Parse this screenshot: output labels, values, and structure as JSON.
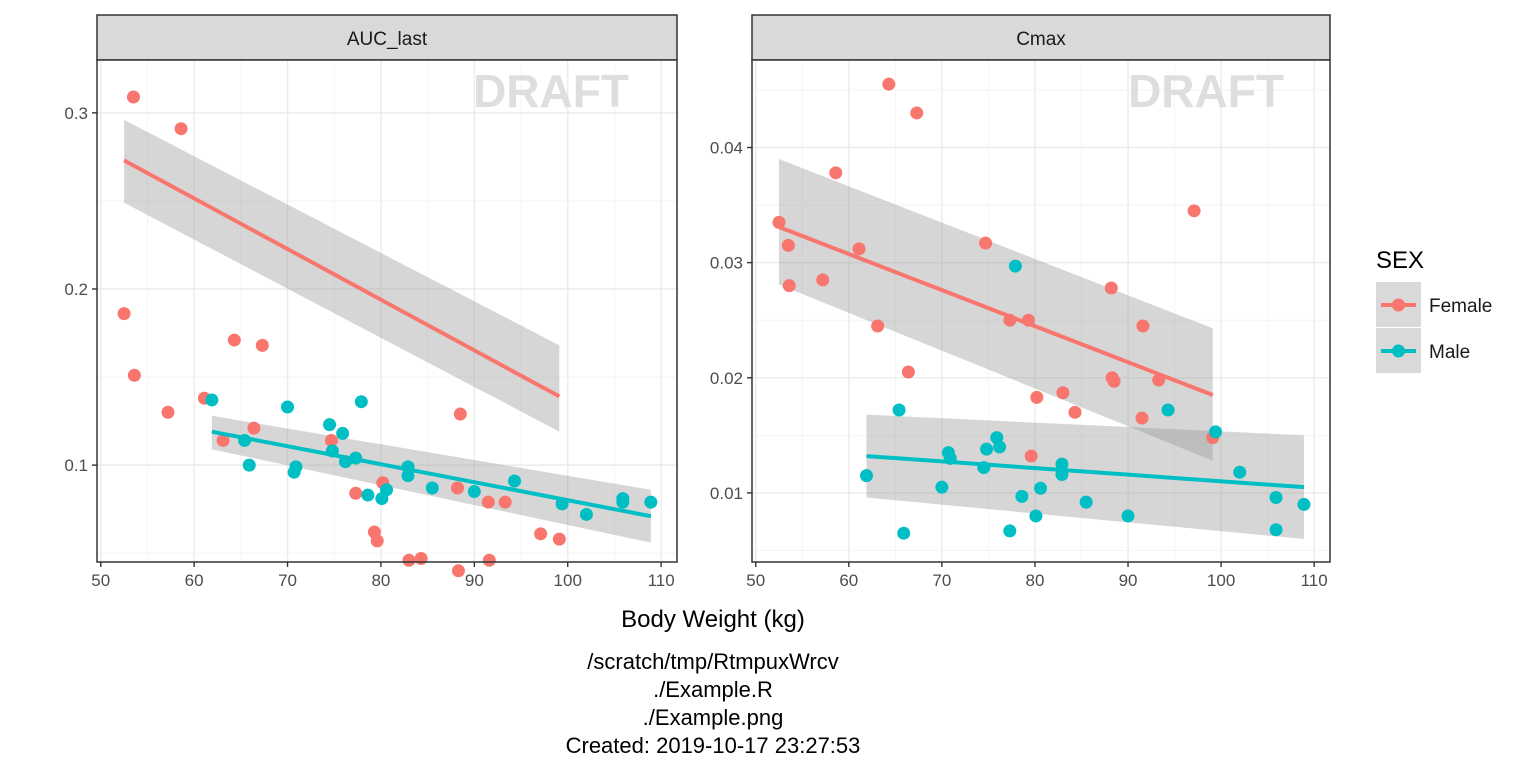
{
  "chart_data": {
    "type": "scatter",
    "x_label": "Body Weight (kg)",
    "legend": {
      "title": "SEX",
      "position": "right",
      "entries": [
        {
          "name": "Female",
          "color": "#F8766D"
        },
        {
          "name": "Male",
          "color": "#00BFC4"
        }
      ]
    },
    "watermark": "DRAFT",
    "x_range": [
      49.6,
      111.7
    ],
    "x_ticks": [
      "50",
      "60",
      "70",
      "80",
      "90",
      "100",
      "110"
    ],
    "x_tick_values": [
      50,
      60,
      70,
      80,
      90,
      100,
      110
    ],
    "panels": [
      {
        "title": "AUC_last",
        "y_range": [
          0.045,
          0.33
        ],
        "y_ticks": [
          "0.1",
          "0.2",
          "0.3"
        ],
        "y_tick_values": [
          0.1,
          0.2,
          0.3
        ],
        "series": [
          {
            "name": "Female",
            "points": [
              [
                52.5,
                0.186
              ],
              [
                53.5,
                0.309
              ],
              [
                53.6,
                0.151
              ],
              [
                57.2,
                0.13
              ],
              [
                58.6,
                0.291
              ],
              [
                61.1,
                0.138
              ],
              [
                63.1,
                0.114
              ],
              [
                64.3,
                0.171
              ],
              [
                66.4,
                0.121
              ],
              [
                67.3,
                0.168
              ],
              [
                74.7,
                0.114
              ],
              [
                77.3,
                0.084
              ],
              [
                79.3,
                0.062
              ],
              [
                79.6,
                0.057
              ],
              [
                80.2,
                0.09
              ],
              [
                83.0,
                0.046
              ],
              [
                84.3,
                0.047
              ],
              [
                88.2,
                0.087
              ],
              [
                88.3,
                0.04
              ],
              [
                88.5,
                0.129
              ],
              [
                91.5,
                0.079
              ],
              [
                91.6,
                0.046
              ],
              [
                93.3,
                0.079
              ],
              [
                97.1,
                0.061
              ],
              [
                99.1,
                0.058
              ]
            ],
            "fit": {
              "x": [
                52.5,
                99.1
              ],
              "y": [
                0.273,
                0.139
              ],
              "ci_low": [
                0.249,
                0.119
              ],
              "ci_high": [
                0.296,
                0.168
              ]
            }
          },
          {
            "name": "Male",
            "points": [
              [
                61.9,
                0.137
              ],
              [
                65.4,
                0.114
              ],
              [
                65.9,
                0.1
              ],
              [
                70.0,
                0.133
              ],
              [
                70.7,
                0.096
              ],
              [
                70.9,
                0.099
              ],
              [
                74.5,
                0.123
              ],
              [
                74.8,
                0.108
              ],
              [
                75.9,
                0.118
              ],
              [
                76.2,
                0.102
              ],
              [
                77.3,
                0.104
              ],
              [
                77.9,
                0.136
              ],
              [
                78.6,
                0.083
              ],
              [
                80.1,
                0.081
              ],
              [
                80.6,
                0.086
              ],
              [
                82.9,
                0.094
              ],
              [
                82.9,
                0.099
              ],
              [
                85.5,
                0.087
              ],
              [
                90.0,
                0.085
              ],
              [
                94.3,
                0.091
              ],
              [
                99.4,
                0.078
              ],
              [
                102.0,
                0.072
              ],
              [
                105.9,
                0.079
              ],
              [
                105.9,
                0.081
              ],
              [
                108.9,
                0.079
              ]
            ],
            "fit": {
              "x": [
                61.9,
                108.9
              ],
              "y": [
                0.119,
                0.071
              ],
              "ci_low": [
                0.109,
                0.056
              ],
              "ci_high": [
                0.128,
                0.086
              ]
            }
          }
        ]
      },
      {
        "title": "Cmax",
        "y_range": [
          0.004,
          0.0476
        ],
        "y_ticks": [
          "0.01",
          "0.02",
          "0.03",
          "0.04"
        ],
        "y_tick_values": [
          0.01,
          0.02,
          0.03,
          0.04
        ],
        "series": [
          {
            "name": "Female",
            "points": [
              [
                52.5,
                0.0335
              ],
              [
                53.5,
                0.0315
              ],
              [
                53.6,
                0.028
              ],
              [
                57.2,
                0.0285
              ],
              [
                58.6,
                0.0378
              ],
              [
                61.1,
                0.0312
              ],
              [
                63.1,
                0.0245
              ],
              [
                64.3,
                0.0455
              ],
              [
                66.4,
                0.0205
              ],
              [
                67.3,
                0.043
              ],
              [
                74.7,
                0.0317
              ],
              [
                77.3,
                0.025
              ],
              [
                79.3,
                0.025
              ],
              [
                79.6,
                0.0132
              ],
              [
                80.2,
                0.0183
              ],
              [
                83.0,
                0.0187
              ],
              [
                84.3,
                0.017
              ],
              [
                88.2,
                0.0278
              ],
              [
                88.3,
                0.02
              ],
              [
                88.5,
                0.0197
              ],
              [
                91.5,
                0.0165
              ],
              [
                91.6,
                0.0245
              ],
              [
                93.3,
                0.0198
              ],
              [
                97.1,
                0.0345
              ],
              [
                99.1,
                0.0148
              ]
            ],
            "fit": {
              "x": [
                52.5,
                99.1
              ],
              "y": [
                0.0331,
                0.0185
              ],
              "ci_low": [
                0.0281,
                0.0128
              ],
              "ci_high": [
                0.039,
                0.0243
              ]
            }
          },
          {
            "name": "Male",
            "points": [
              [
                61.9,
                0.0115
              ],
              [
                65.4,
                0.0172
              ],
              [
                65.9,
                0.0065
              ],
              [
                70.0,
                0.0105
              ],
              [
                70.7,
                0.0135
              ],
              [
                70.9,
                0.013
              ],
              [
                74.5,
                0.0122
              ],
              [
                74.8,
                0.0138
              ],
              [
                75.9,
                0.0148
              ],
              [
                76.2,
                0.014
              ],
              [
                77.3,
                0.0067
              ],
              [
                77.9,
                0.0297
              ],
              [
                78.6,
                0.0097
              ],
              [
                80.1,
                0.008
              ],
              [
                80.6,
                0.0104
              ],
              [
                82.9,
                0.0116
              ],
              [
                82.9,
                0.0125
              ],
              [
                85.5,
                0.0092
              ],
              [
                90.0,
                0.008
              ],
              [
                94.3,
                0.0172
              ],
              [
                99.4,
                0.0153
              ],
              [
                102.0,
                0.0118
              ],
              [
                105.9,
                0.0096
              ],
              [
                105.9,
                0.0068
              ],
              [
                108.9,
                0.009
              ]
            ],
            "fit": {
              "x": [
                61.9,
                108.9
              ],
              "y": [
                0.0132,
                0.0105
              ],
              "ci_low": [
                0.0096,
                0.006
              ],
              "ci_high": [
                0.0168,
                0.015
              ]
            }
          }
        ]
      }
    ]
  },
  "caption": {
    "lines": [
      "/scratch/tmp/RtmpuxWrcv",
      "./Example.R",
      "./Example.png",
      "Created: 2019-10-17 23:27:53"
    ]
  }
}
